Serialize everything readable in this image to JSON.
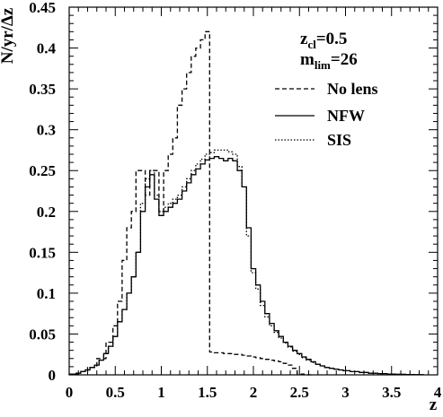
{
  "chart_data": {
    "type": "line",
    "xlabel": "z",
    "ylabel": "N/yr/Δz",
    "xlim": [
      0,
      4
    ],
    "ylim": [
      0,
      0.45
    ],
    "x_ticks": [
      "0",
      "0.5",
      "1",
      "1.5",
      "2",
      "2.5",
      "3",
      "3.5",
      "4"
    ],
    "y_ticks": [
      "0",
      "0.05",
      "0.1",
      "0.15",
      "0.2",
      "0.25",
      "0.3",
      "0.35",
      "0.4",
      "0.45"
    ],
    "annotation_zcl": {
      "base": "z",
      "sub": "cl",
      "rest": "=0.5"
    },
    "annotation_mlim": {
      "base": "m",
      "sub": "lim",
      "rest": "=26"
    },
    "legend_placement": "top-right",
    "series": [
      {
        "name": "No lens",
        "style": "dashed",
        "x": [
          0.05,
          0.15,
          0.25,
          0.35,
          0.45,
          0.5,
          0.55,
          0.6,
          0.65,
          0.7,
          0.75,
          0.8,
          0.85,
          0.9,
          0.95,
          1.0,
          1.05,
          1.1,
          1.15,
          1.2,
          1.25,
          1.3,
          1.35,
          1.4,
          1.45,
          1.5,
          1.55,
          1.6,
          1.65,
          1.7,
          1.75,
          1.8,
          1.85,
          1.9,
          1.95,
          2.0,
          2.05,
          2.1,
          2.15,
          2.2,
          2.25,
          2.3,
          2.35,
          2.4,
          2.45,
          2.5,
          2.6
        ],
        "y": [
          0.001,
          0.004,
          0.009,
          0.02,
          0.04,
          0.06,
          0.09,
          0.14,
          0.18,
          0.2,
          0.25,
          0.25,
          0.22,
          0.25,
          0.25,
          0.2,
          0.25,
          0.27,
          0.29,
          0.33,
          0.35,
          0.37,
          0.39,
          0.4,
          0.41,
          0.42,
          0.028,
          0.027,
          0.027,
          0.026,
          0.026,
          0.025,
          0.025,
          0.024,
          0.023,
          0.022,
          0.021,
          0.02,
          0.019,
          0.018,
          0.017,
          0.016,
          0.014,
          0.012,
          0.008,
          0.001,
          0.0
        ]
      },
      {
        "name": "NFW",
        "style": "solid",
        "x": [
          0.05,
          0.1,
          0.15,
          0.2,
          0.25,
          0.3,
          0.35,
          0.4,
          0.45,
          0.5,
          0.55,
          0.6,
          0.65,
          0.7,
          0.75,
          0.8,
          0.85,
          0.9,
          0.95,
          1.0,
          1.05,
          1.1,
          1.15,
          1.2,
          1.25,
          1.3,
          1.35,
          1.4,
          1.45,
          1.5,
          1.55,
          1.6,
          1.65,
          1.7,
          1.75,
          1.8,
          1.85,
          1.9,
          1.95,
          2.0,
          2.05,
          2.1,
          2.15,
          2.2,
          2.25,
          2.3,
          2.35,
          2.4,
          2.45,
          2.5,
          2.55,
          2.6,
          2.65,
          2.7,
          2.75,
          2.8,
          2.85,
          2.9,
          2.95,
          3.0,
          3.1,
          3.2,
          3.3,
          3.4,
          3.5,
          3.6,
          3.7,
          3.8
        ],
        "y": [
          0.001,
          0.002,
          0.004,
          0.006,
          0.009,
          0.012,
          0.018,
          0.026,
          0.035,
          0.047,
          0.065,
          0.08,
          0.1,
          0.12,
          0.15,
          0.2,
          0.23,
          0.245,
          0.215,
          0.195,
          0.2,
          0.205,
          0.21,
          0.215,
          0.225,
          0.235,
          0.245,
          0.252,
          0.258,
          0.263,
          0.265,
          0.267,
          0.265,
          0.262,
          0.265,
          0.262,
          0.25,
          0.23,
          0.18,
          0.13,
          0.11,
          0.09,
          0.075,
          0.063,
          0.054,
          0.047,
          0.04,
          0.035,
          0.03,
          0.026,
          0.022,
          0.019,
          0.016,
          0.013,
          0.011,
          0.009,
          0.008,
          0.007,
          0.006,
          0.005,
          0.004,
          0.003,
          0.002,
          0.0015,
          0.001,
          0.0007,
          0.0004,
          0.0002
        ]
      },
      {
        "name": "SIS",
        "style": "dotted",
        "x": [
          0.05,
          0.1,
          0.15,
          0.2,
          0.25,
          0.3,
          0.35,
          0.4,
          0.45,
          0.5,
          0.55,
          0.6,
          0.65,
          0.7,
          0.75,
          0.8,
          0.85,
          0.9,
          0.95,
          1.0,
          1.05,
          1.1,
          1.15,
          1.2,
          1.25,
          1.3,
          1.35,
          1.4,
          1.45,
          1.5,
          1.55,
          1.6,
          1.65,
          1.7,
          1.75,
          1.8,
          1.85,
          1.9,
          1.95,
          2.0,
          2.05,
          2.1,
          2.15,
          2.2,
          2.25,
          2.3,
          2.35,
          2.4,
          2.45,
          2.5,
          2.55,
          2.6,
          2.65,
          2.7,
          2.75,
          2.8,
          2.85,
          2.9,
          2.95,
          3.0,
          3.1,
          3.2,
          3.3,
          3.4,
          3.5,
          3.6,
          3.7,
          3.8
        ],
        "y": [
          0.001,
          0.002,
          0.004,
          0.006,
          0.009,
          0.012,
          0.018,
          0.026,
          0.035,
          0.047,
          0.065,
          0.08,
          0.1,
          0.12,
          0.15,
          0.21,
          0.24,
          0.25,
          0.22,
          0.2,
          0.205,
          0.21,
          0.215,
          0.22,
          0.23,
          0.24,
          0.25,
          0.258,
          0.264,
          0.27,
          0.272,
          0.275,
          0.275,
          0.275,
          0.273,
          0.27,
          0.255,
          0.23,
          0.17,
          0.125,
          0.105,
          0.085,
          0.071,
          0.06,
          0.052,
          0.045,
          0.039,
          0.034,
          0.029,
          0.025,
          0.021,
          0.018,
          0.015,
          0.013,
          0.011,
          0.009,
          0.008,
          0.007,
          0.006,
          0.005,
          0.004,
          0.003,
          0.002,
          0.0015,
          0.001,
          0.0007,
          0.0004,
          0.0002
        ]
      }
    ]
  }
}
